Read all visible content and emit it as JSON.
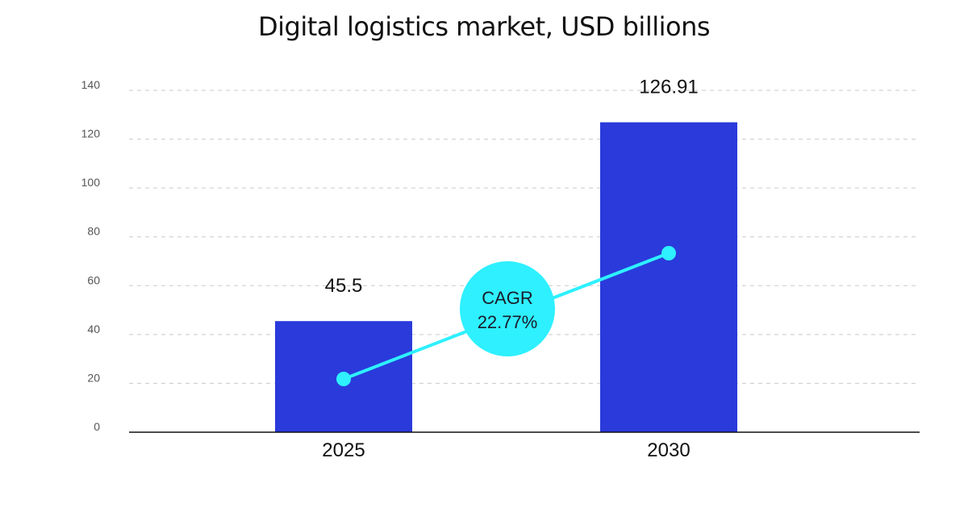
{
  "chart_data": {
    "type": "bar",
    "title": "Digital logistics market, USD billions",
    "categories": [
      "2025",
      "2030"
    ],
    "values": [
      45.5,
      126.91
    ],
    "value_labels": [
      "45.5",
      "126.91"
    ],
    "ylim": [
      0,
      140
    ],
    "yticks": [
      "0",
      "20",
      "40",
      "60",
      "80",
      "100",
      "120",
      "140"
    ],
    "grid": true,
    "bar_color": "#2a3adb",
    "trend_color": "#2ef0ff",
    "cagr": {
      "label": "CAGR",
      "value": "22.77%"
    }
  }
}
